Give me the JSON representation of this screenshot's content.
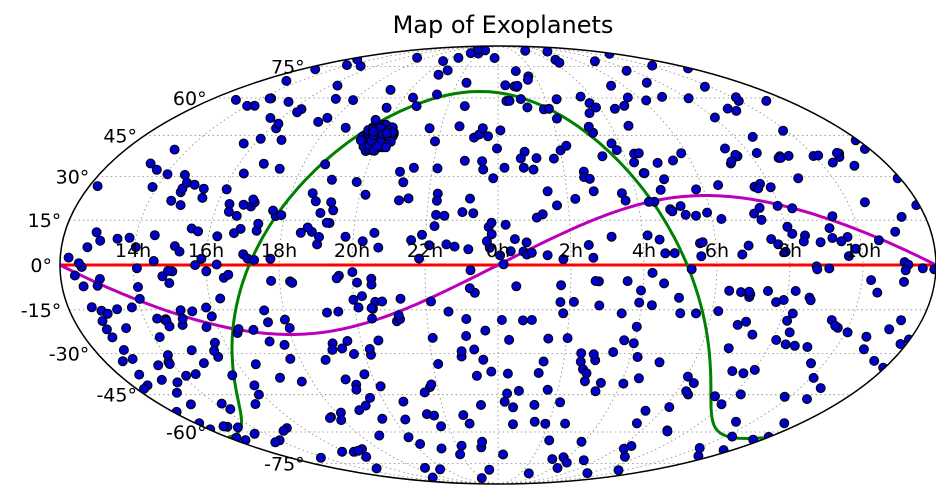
{
  "chart_data": {
    "type": "scatter",
    "projection": "mollweide",
    "title": "Map of Exoplanets",
    "grid": true,
    "lat_ticks": [
      "75°",
      "60°",
      "45°",
      "30°",
      "15°",
      "0°",
      "-15°",
      "-30°",
      "-45°",
      "-60°",
      "-75°"
    ],
    "lon_ticks": [
      "14h",
      "16h",
      "18h",
      "20h",
      "22h",
      "0h",
      "2h",
      "4h",
      "6h",
      "8h",
      "10h"
    ],
    "point_color": "#0000cc",
    "point_edge": "#000000",
    "lines": [
      {
        "role": "celestial-equator",
        "color": "#ff0000"
      },
      {
        "role": "ecliptic",
        "color": "#bb00bb",
        "amplitude_deg": 23.4
      },
      {
        "role": "galactic-plane",
        "color": "#008000"
      }
    ],
    "cluster": {
      "lon_deg": -61,
      "lat_deg": 44,
      "count": 70
    },
    "point_count": 720
  }
}
